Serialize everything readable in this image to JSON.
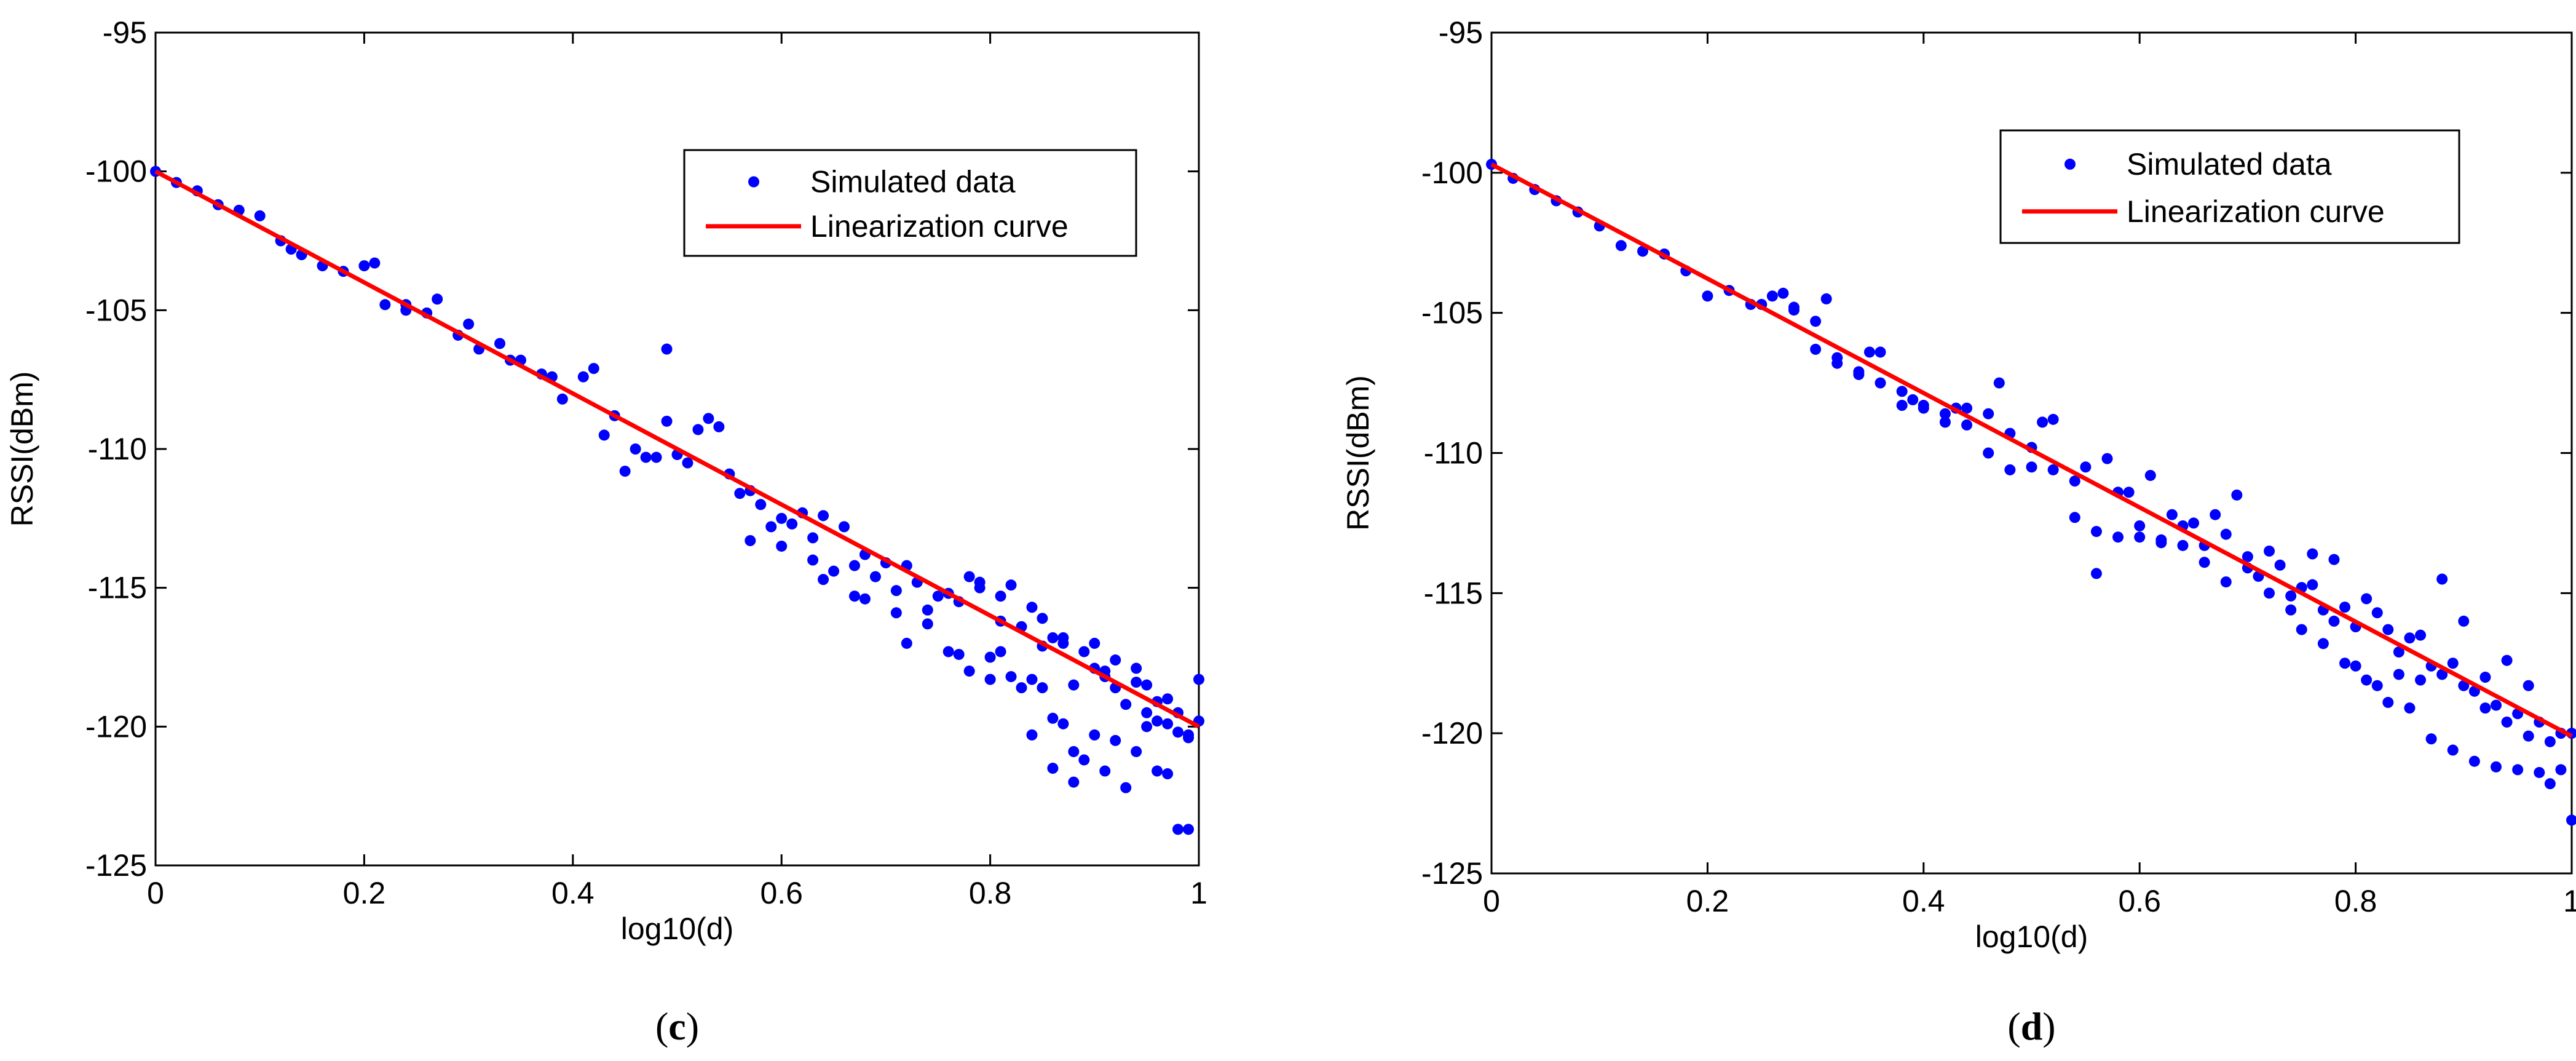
{
  "chart_data": [
    {
      "type": "scatter",
      "caption_open": "(",
      "caption_letter": "c",
      "caption_close": ")",
      "xlabel": "log10(d)",
      "ylabel": "RSSI(dBm)",
      "xlim": [
        0,
        1
      ],
      "ylim": [
        -125,
        -95
      ],
      "xticks": [
        0,
        0.2,
        0.4,
        0.6,
        0.8,
        1
      ],
      "xtick_labels": [
        "0",
        "0.2",
        "0.4",
        "0.6",
        "0.8",
        "1"
      ],
      "yticks": [
        -95,
        -100,
        -105,
        -110,
        -115,
        -120,
        -125
      ],
      "ytick_labels": [
        "-95",
        "-100",
        "-105",
        "-110",
        "-115",
        "-120",
        "-125"
      ],
      "legend_position": "top-right",
      "series": [
        {
          "name": "Simulated data",
          "kind": "scatter",
          "color": "#0000ff",
          "x": [
            0.0,
            0.02,
            0.04,
            0.06,
            0.08,
            0.1,
            0.12,
            0.14,
            0.16,
            0.18,
            0.2,
            0.22,
            0.24,
            0.26,
            0.27,
            0.29,
            0.31,
            0.33,
            0.35,
            0.37,
            0.39,
            0.41,
            0.43,
            0.45,
            0.47,
            0.49,
            0.5,
            0.52,
            0.53,
            0.55,
            0.57,
            0.58,
            0.6,
            0.62,
            0.64,
            0.66,
            0.68,
            0.7,
            0.72,
            0.74,
            0.76,
            0.78,
            0.79,
            0.81,
            0.82,
            0.84,
            0.85,
            0.87,
            0.88,
            0.9,
            0.91,
            0.92,
            0.94,
            0.95,
            0.97,
            0.98,
            1.0,
            0.21,
            0.13,
            0.24,
            0.3,
            0.34,
            0.38,
            0.42,
            0.44,
            0.46,
            0.48,
            0.51,
            0.54,
            0.56,
            0.59,
            0.61,
            0.63,
            0.65,
            0.67,
            0.69,
            0.71,
            0.73,
            0.75,
            0.77,
            0.79,
            0.81,
            0.83,
            0.85,
            0.86,
            0.87,
            0.89,
            0.9,
            0.91,
            0.92,
            0.93,
            0.94,
            0.95,
            0.96,
            0.96,
            0.97,
            0.98,
            0.99,
            0.99,
            0.88,
            0.86,
            0.84,
            0.8,
            0.76,
            0.72,
            0.68,
            0.64,
            0.6,
            0.57,
            0.98,
            0.97,
            0.96,
            0.95,
            0.94,
            0.93,
            0.92,
            0.91,
            0.9,
            0.89,
            0.88,
            0.87,
            0.86,
            0.85,
            0.84,
            0.83,
            0.82,
            0.81,
            0.8,
            0.78,
            0.77,
            0.74,
            0.71,
            0.67,
            0.63,
            0.49,
            0.99,
            1.0
          ],
          "y": [
            -100.0,
            -100.4,
            -100.7,
            -101.2,
            -101.4,
            -101.6,
            -102.5,
            -103.0,
            -103.4,
            -103.6,
            -103.4,
            -104.8,
            -105.0,
            -105.1,
            -104.6,
            -105.9,
            -106.4,
            -106.2,
            -106.8,
            -107.3,
            -108.2,
            -107.4,
            -109.5,
            -110.8,
            -110.3,
            -109.0,
            -110.2,
            -109.3,
            -108.9,
            -110.9,
            -111.5,
            -112.0,
            -112.5,
            -112.3,
            -112.4,
            -112.8,
            -113.8,
            -114.1,
            -114.2,
            -115.8,
            -115.2,
            -114.6,
            -114.8,
            -115.3,
            -114.9,
            -115.7,
            -116.1,
            -116.8,
            -118.5,
            -117.0,
            -118.0,
            -117.6,
            -117.9,
            -118.5,
            -119.0,
            -119.5,
            -119.8,
            -103.3,
            -102.8,
            -104.8,
            -105.5,
            -106.8,
            -107.4,
            -107.1,
            -108.8,
            -110.0,
            -110.3,
            -110.5,
            -109.2,
            -111.6,
            -112.8,
            -112.7,
            -113.2,
            -114.4,
            -114.2,
            -114.6,
            -115.1,
            -114.8,
            -115.3,
            -115.5,
            -115.0,
            -116.2,
            -116.4,
            -117.1,
            -116.8,
            -117.0,
            -117.3,
            -117.9,
            -118.2,
            -118.6,
            -119.2,
            -118.4,
            -119.5,
            -119.1,
            -119.8,
            -119.9,
            -120.2,
            -120.4,
            -120.3,
            -122.0,
            -121.5,
            -120.3,
            -118.3,
            -117.3,
            -117.0,
            -115.4,
            -114.7,
            -113.5,
            -113.3,
            -123.7,
            -121.7,
            -121.6,
            -120.0,
            -120.9,
            -122.2,
            -120.5,
            -121.6,
            -120.3,
            -121.2,
            -120.9,
            -119.9,
            -119.7,
            -118.6,
            -118.3,
            -118.6,
            -118.2,
            -117.3,
            -117.5,
            -118.0,
            -117.4,
            -116.3,
            -115.9,
            -115.3,
            -114.0,
            -106.4,
            -123.7,
            -118.3
          ]
        },
        {
          "name": "Linearization curve",
          "kind": "line",
          "color": "#ff0000",
          "x": [
            0,
            1
          ],
          "y": [
            -100,
            -120
          ]
        }
      ]
    },
    {
      "type": "scatter",
      "caption_open": "(",
      "caption_letter": "d",
      "caption_close": ")",
      "xlabel": "log10(d)",
      "ylabel": "RSSI(dBm)",
      "xlim": [
        0,
        1
      ],
      "ylim": [
        -125,
        -95
      ],
      "xticks": [
        0,
        0.2,
        0.4,
        0.6,
        0.8,
        1
      ],
      "xtick_labels": [
        "0",
        "0.2",
        "0.4",
        "0.6",
        "0.8",
        "1"
      ],
      "yticks": [
        -95,
        -100,
        -105,
        -110,
        -115,
        -120,
        -125
      ],
      "ytick_labels": [
        "-95",
        "-100",
        "-105",
        "-110",
        "-115",
        "-120",
        "-125"
      ],
      "legend_position": "top-right",
      "series": [
        {
          "name": "Simulated data",
          "kind": "scatter",
          "color": "#0000ff",
          "x": [
            0.0,
            0.02,
            0.04,
            0.06,
            0.08,
            0.1,
            0.12,
            0.14,
            0.16,
            0.18,
            0.2,
            0.22,
            0.24,
            0.26,
            0.28,
            0.3,
            0.32,
            0.34,
            0.36,
            0.38,
            0.4,
            0.42,
            0.44,
            0.46,
            0.48,
            0.5,
            0.52,
            0.54,
            0.56,
            0.58,
            0.6,
            0.62,
            0.64,
            0.66,
            0.68,
            0.7,
            0.72,
            0.74,
            0.76,
            0.78,
            0.8,
            0.82,
            0.84,
            0.86,
            0.88,
            0.9,
            0.92,
            0.94,
            0.96,
            0.98,
            1.0,
            0.27,
            0.31,
            0.35,
            0.39,
            0.43,
            0.47,
            0.51,
            0.55,
            0.57,
            0.59,
            0.61,
            0.63,
            0.65,
            0.67,
            0.69,
            0.71,
            0.73,
            0.75,
            0.77,
            0.79,
            0.81,
            0.83,
            0.85,
            0.87,
            0.89,
            0.91,
            0.93,
            0.95,
            0.97,
            0.99,
            0.96,
            0.94,
            0.92,
            0.9,
            0.88,
            0.86,
            0.84,
            0.82,
            0.8,
            0.78,
            0.76,
            0.74,
            0.72,
            0.7,
            0.68,
            0.66,
            0.64,
            0.62,
            0.6,
            0.58,
            0.56,
            0.54,
            0.52,
            0.5,
            0.48,
            0.46,
            0.44,
            0.42,
            0.4,
            0.38,
            0.36,
            0.34,
            0.32,
            0.3,
            0.28,
            0.25,
            0.98,
            0.99,
            1.0,
            0.97,
            0.95,
            0.93,
            0.91,
            0.89,
            0.87,
            0.85,
            0.83,
            0.81,
            0.79,
            0.77,
            0.75
          ],
          "y": [
            -99.7,
            -100.2,
            -100.6,
            -101.0,
            -101.4,
            -101.9,
            -102.6,
            -102.8,
            -102.9,
            -103.5,
            -104.4,
            -104.2,
            -104.7,
            -104.4,
            -104.8,
            -105.3,
            -106.6,
            -107.2,
            -106.4,
            -108.3,
            -108.4,
            -108.9,
            -109.0,
            -110.0,
            -110.6,
            -110.5,
            -108.8,
            -111.0,
            -112.8,
            -111.4,
            -112.6,
            -113.2,
            -112.6,
            -113.3,
            -112.9,
            -114.1,
            -115.0,
            -115.6,
            -113.6,
            -113.8,
            -116.2,
            -115.7,
            -117.1,
            -118.1,
            -117.9,
            -118.3,
            -119.1,
            -119.6,
            -120.1,
            -120.3,
            -120.0,
            -104.3,
            -104.5,
            -106.4,
            -108.1,
            -108.4,
            -107.5,
            -108.9,
            -110.5,
            -110.2,
            -111.4,
            -110.8,
            -112.2,
            -112.5,
            -112.2,
            -111.5,
            -114.4,
            -114.0,
            -114.8,
            -115.6,
            -115.5,
            -115.2,
            -116.3,
            -116.6,
            -117.6,
            -117.5,
            -118.5,
            -119.0,
            -119.3,
            -119.6,
            -120.0,
            -118.3,
            -117.4,
            -118.0,
            -116.0,
            -114.5,
            -116.5,
            -117.9,
            -118.3,
            -117.6,
            -116.0,
            -114.7,
            -115.1,
            -113.5,
            -113.7,
            -114.6,
            -113.9,
            -113.3,
            -113.1,
            -113.0,
            -113.0,
            -114.3,
            -112.3,
            -110.6,
            -109.8,
            -109.3,
            -108.6,
            -108.4,
            -108.6,
            -108.3,
            -107.8,
            -107.5,
            -107.1,
            -106.8,
            -106.3,
            -104.9,
            -104.7,
            -121.8,
            -121.3,
            -123.1,
            -121.4,
            -121.3,
            -121.2,
            -121.0,
            -120.6,
            -120.2,
            -119.1,
            -118.9,
            -118.1,
            -117.5,
            -116.8,
            -116.3
          ]
        },
        {
          "name": "Linearization curve",
          "kind": "line",
          "color": "#ff0000",
          "x": [
            0,
            1
          ],
          "y": [
            -99.7,
            -120.1
          ]
        }
      ]
    }
  ]
}
